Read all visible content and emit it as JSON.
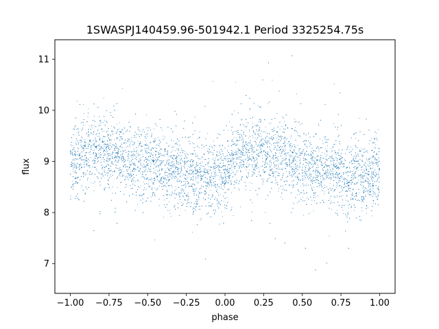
{
  "chart_data": {
    "type": "scatter",
    "title": "1SWASPJ140459.96-501942.1 Period 3325254.75s",
    "xlabel": "phase",
    "ylabel": "flux",
    "xlim": [
      -1.1,
      1.1
    ],
    "ylim": [
      6.42,
      11.38
    ],
    "x_ticks": [
      -1.0,
      -0.75,
      -0.5,
      -0.25,
      0.0,
      0.25,
      0.5,
      0.75,
      1.0
    ],
    "x_tick_labels": [
      "−1.00",
      "−0.75",
      "−0.50",
      "−0.25",
      "0.00",
      "0.25",
      "0.50",
      "0.75",
      "1.00"
    ],
    "y_ticks": [
      7,
      8,
      9,
      10,
      11
    ],
    "y_tick_labels": [
      "7",
      "8",
      "9",
      "10",
      "11"
    ],
    "grid": false,
    "marker_color": "#1f77b4",
    "series": [
      {
        "description_of_shape": "dense band of points, phase folded twice",
        "profile_x": [
          -1.0,
          -0.9,
          -0.8,
          -0.7,
          -0.6,
          -0.5,
          -0.4,
          -0.3,
          -0.2,
          -0.1,
          0.0,
          0.1,
          0.2,
          0.3,
          0.4,
          0.5,
          0.6,
          0.7,
          0.8,
          0.9,
          1.0
        ],
        "profile_mean_flux": [
          8.95,
          9.15,
          9.2,
          9.15,
          9.05,
          8.95,
          8.85,
          8.8,
          8.7,
          8.65,
          8.8,
          9.15,
          9.2,
          9.15,
          9.05,
          8.95,
          8.85,
          8.8,
          8.7,
          8.65,
          8.8
        ],
        "spread_sigma": 0.35,
        "x_range": [
          -1.0,
          1.0
        ],
        "y_range": [
          6.6,
          11.15
        ]
      }
    ]
  }
}
